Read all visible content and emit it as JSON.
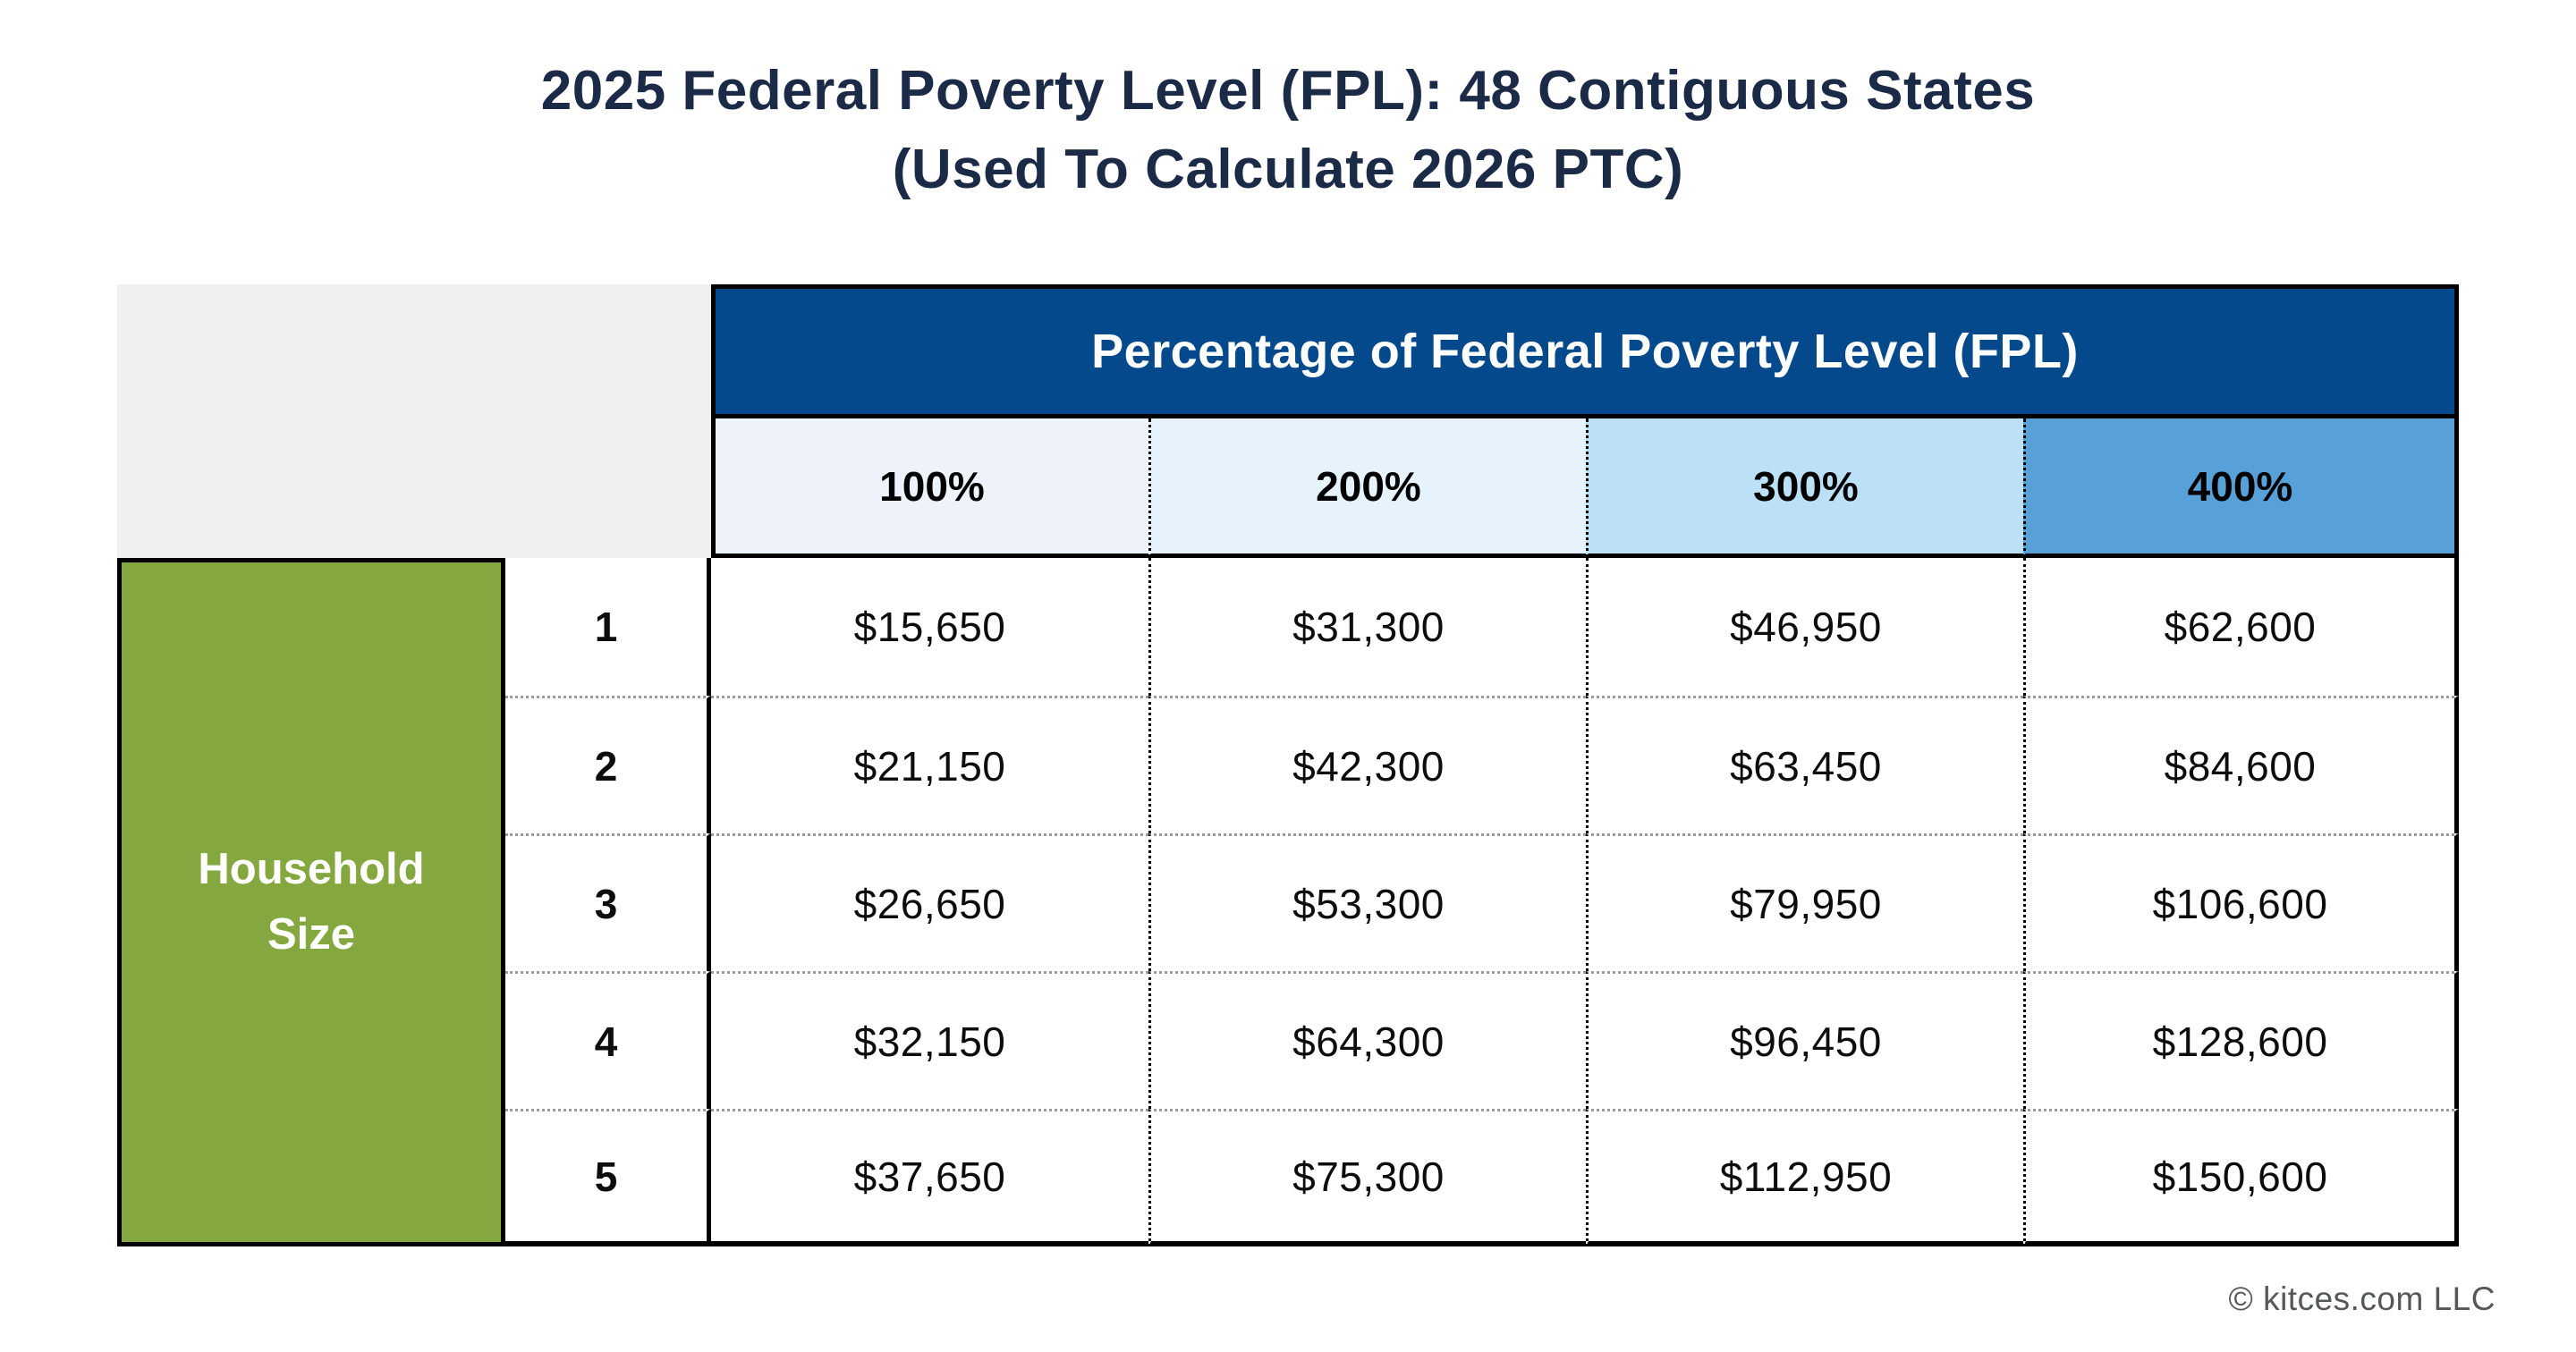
{
  "title": {
    "line1": "2025 Federal Poverty Level (FPL): 48 Contiguous States",
    "line2": "(Used To Calculate 2026 PTC)"
  },
  "table": {
    "header": "Percentage of Federal Poverty Level (FPL)",
    "row_header": {
      "line1": "Household",
      "line2": "Size"
    },
    "columns": [
      "100%",
      "200%",
      "300%",
      "400%"
    ],
    "rows": [
      {
        "size": "1",
        "values": [
          "$15,650",
          "$31,300",
          "$46,950",
          "$62,600"
        ]
      },
      {
        "size": "2",
        "values": [
          "$21,150",
          "$42,300",
          "$63,450",
          "$84,600"
        ]
      },
      {
        "size": "3",
        "values": [
          "$26,650",
          "$53,300",
          "$79,950",
          "$106,600"
        ]
      },
      {
        "size": "4",
        "values": [
          "$32,150",
          "$64,300",
          "$96,450",
          "$128,600"
        ]
      },
      {
        "size": "5",
        "values": [
          "$37,650",
          "$75,300",
          "$112,950",
          "$150,600"
        ]
      }
    ]
  },
  "footer": {
    "copyright": "© kitces.com LLC"
  },
  "colors": {
    "title_text": "#1b2a47",
    "header_blue": "#04498c",
    "col_100_bg": "#edf2fb",
    "col_200_bg": "#e7f3fc",
    "col_300_bg": "#bce0f5",
    "col_400_bg": "#58a1d8",
    "household_green": "#84a83f",
    "corner_gray": "#f0f0f1",
    "border_black": "#000000",
    "row_divider_gray": "#9a9a9a",
    "footer_gray": "#54585a"
  },
  "chart_data": {
    "type": "table",
    "title": "2025 Federal Poverty Level (FPL): 48 Contiguous States (Used To Calculate 2026 PTC)",
    "column_group_header": "Percentage of Federal Poverty Level (FPL)",
    "row_group_header": "Household Size",
    "columns": [
      "100%",
      "200%",
      "300%",
      "400%"
    ],
    "row_labels": [
      1,
      2,
      3,
      4,
      5
    ],
    "values": [
      [
        15650,
        31300,
        46950,
        62600
      ],
      [
        21150,
        42300,
        63450,
        84600
      ],
      [
        26650,
        53300,
        79950,
        106600
      ],
      [
        32150,
        64300,
        96450,
        128600
      ],
      [
        37650,
        75300,
        112950,
        150600
      ]
    ],
    "source": "© kitces.com LLC"
  }
}
